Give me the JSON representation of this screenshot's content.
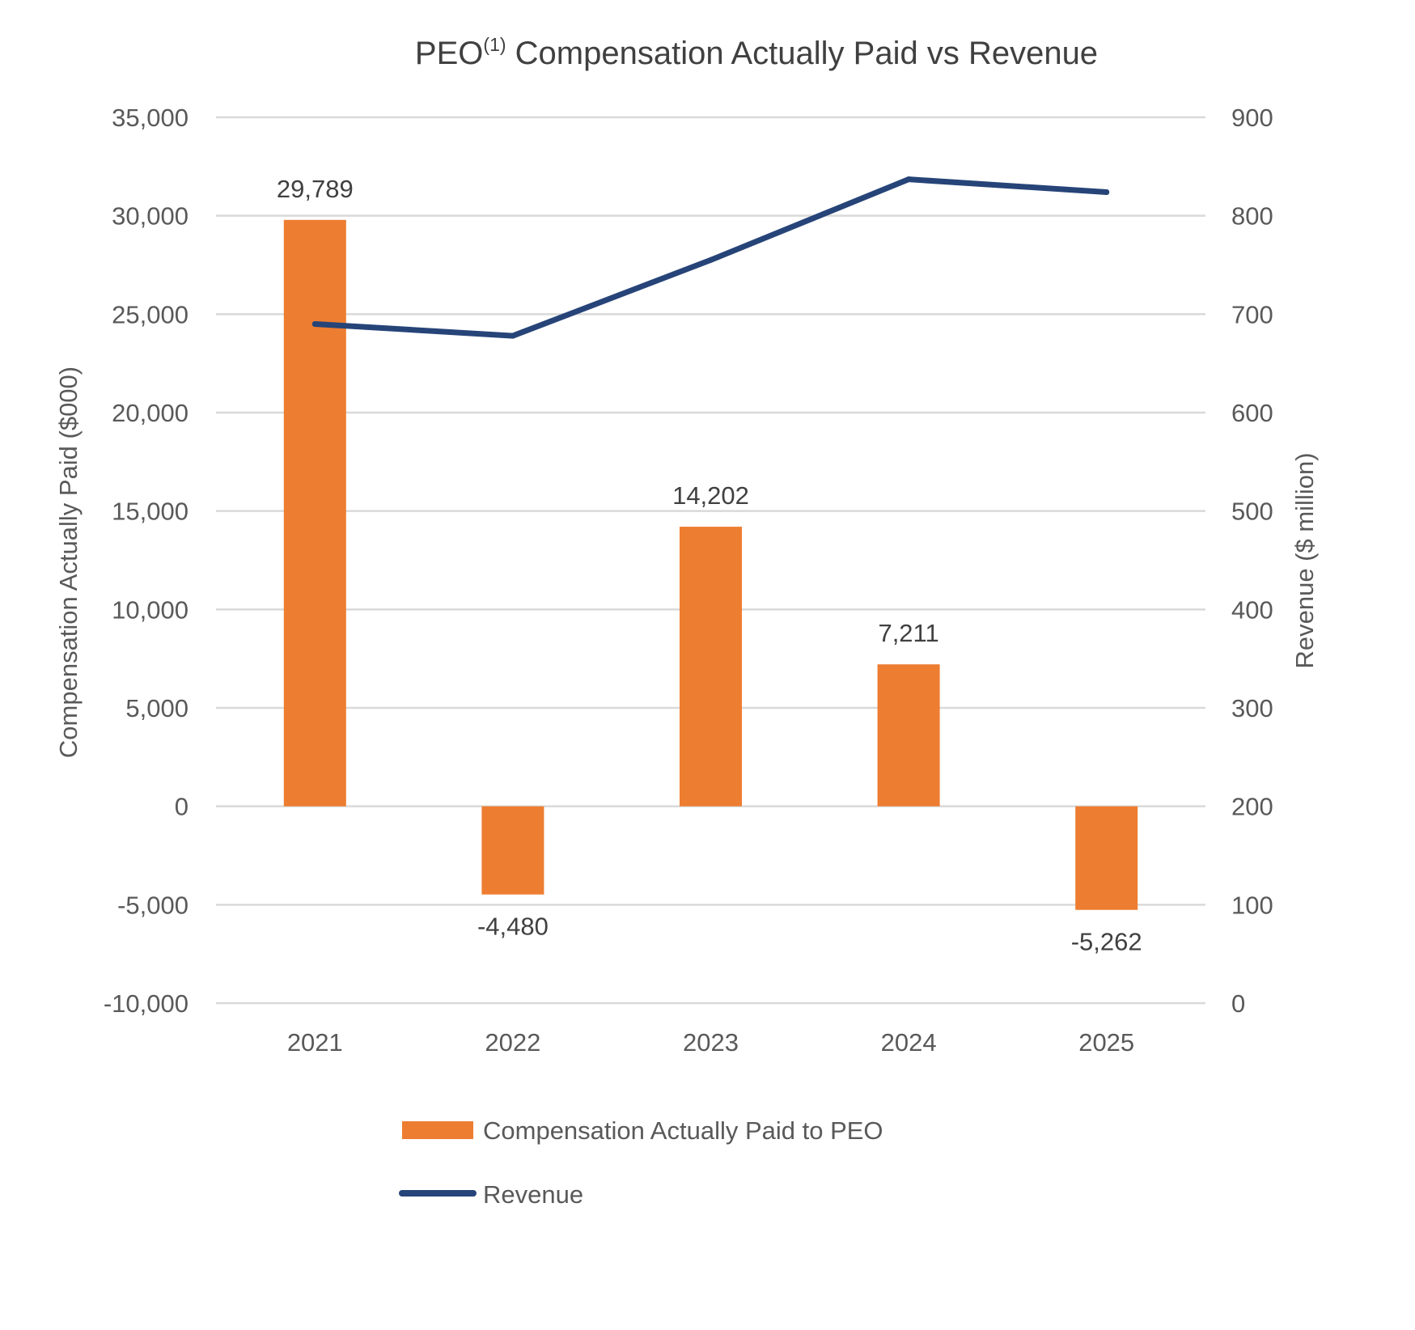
{
  "chart_data": {
    "type": "bar",
    "title": {
      "prefix": "PEO",
      "superscript": "(1)",
      "suffix": " Compensation Actually Paid vs Revenue"
    },
    "categories": [
      "2021",
      "2022",
      "2023",
      "2024",
      "2025"
    ],
    "series": [
      {
        "name": "Compensation Actually Paid to PEO",
        "type": "bar",
        "axis": "left",
        "color": "#ED7D31",
        "values": [
          29789,
          -4480,
          14202,
          7211,
          -5262
        ],
        "labels": [
          "29,789",
          "-4,480",
          "14,202",
          "7,211",
          "-5,262"
        ]
      },
      {
        "name": "Revenue",
        "type": "line",
        "axis": "right",
        "color": "#264478",
        "values": [
          690,
          678,
          755,
          837,
          824
        ]
      }
    ],
    "y_left": {
      "label": "Compensation Actually Paid ($000)",
      "ylim": [
        -10000,
        35000
      ],
      "ticks": [
        -10000,
        -5000,
        0,
        5000,
        10000,
        15000,
        20000,
        25000,
        30000,
        35000
      ],
      "tick_labels": [
        "-10,000",
        "-5,000",
        "0",
        "5,000",
        "10,000",
        "15,000",
        "20,000",
        "25,000",
        "30,000",
        "35,000"
      ]
    },
    "y_right": {
      "label": "Revenue ($ million)",
      "ylim": [
        0,
        900
      ],
      "ticks": [
        0,
        100,
        200,
        300,
        400,
        500,
        600,
        700,
        800,
        900
      ],
      "tick_labels": [
        "0",
        "100",
        "200",
        "300",
        "400",
        "500",
        "600",
        "700",
        "800",
        "900"
      ]
    },
    "grid": true,
    "gridline_color": "#D9D9D9",
    "legend_position": "bottom"
  }
}
